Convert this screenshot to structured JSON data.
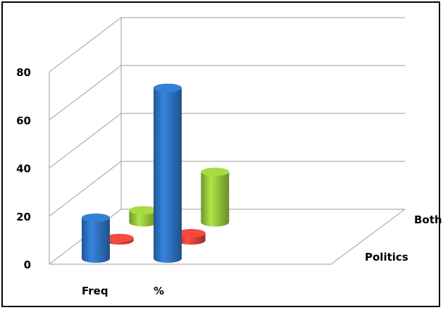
{
  "chart_data": {
    "type": "bar",
    "categories": [
      "Freq",
      "%"
    ],
    "series": [
      {
        "name": "",
        "values": [
          17,
          71
        ],
        "color": "#2f74c4"
      },
      {
        "name": "Politics",
        "values": [
          1,
          3
        ],
        "color": "#e0423a"
      },
      {
        "name": "Both",
        "values": [
          5,
          21
        ],
        "color": "#97c83c"
      }
    ],
    "ylim": [
      0,
      80
    ],
    "yticks": [
      "0",
      "20",
      "40",
      "60",
      "80"
    ],
    "grid": true,
    "depth_labels": [
      "Politics",
      "Both"
    ]
  }
}
